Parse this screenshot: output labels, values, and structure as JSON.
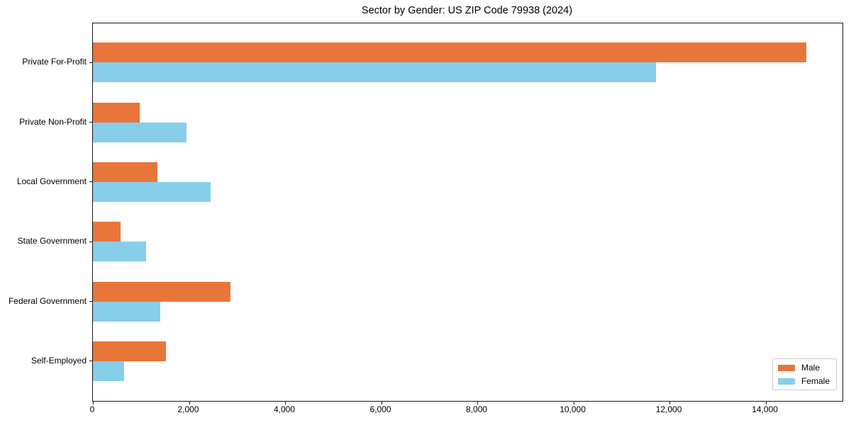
{
  "chart_data": {
    "type": "bar",
    "orientation": "horizontal",
    "title": "Sector by Gender: US ZIP Code 79938 (2024)",
    "categories": [
      "Private For-Profit",
      "Private Non-Profit",
      "Local Government",
      "State Government",
      "Federal Government",
      "Self-Employed"
    ],
    "series": [
      {
        "name": "Male",
        "color": "#e8763b",
        "values": [
          14840,
          975,
          1345,
          580,
          2860,
          1515
        ]
      },
      {
        "name": "Female",
        "color": "#87ceeb",
        "values": [
          11725,
          1945,
          2450,
          1100,
          1395,
          655
        ]
      }
    ],
    "xlabel": "",
    "ylabel": "",
    "xlim": [
      0,
      15600
    ],
    "x_ticks": [
      0,
      2000,
      4000,
      6000,
      8000,
      10000,
      12000,
      14000
    ],
    "x_tick_labels": [
      "0",
      "2,000",
      "4,000",
      "6,000",
      "8,000",
      "10,000",
      "12,000",
      "14,000"
    ],
    "grid": false,
    "legend": {
      "position": "lower right",
      "entries": [
        "Male",
        "Female"
      ]
    },
    "background": "#ffffff",
    "spine_color": "#1a1a1a"
  }
}
